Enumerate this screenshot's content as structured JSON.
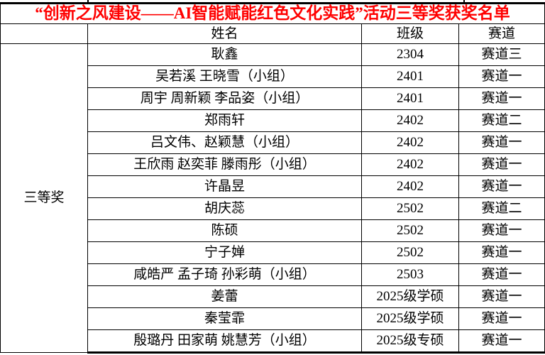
{
  "title": "“创新之风建设——AI智能赋能红色文化实践”活动三等奖获奖名单",
  "colors": {
    "title_text": "#ff0000",
    "body_text": "#000000",
    "border": "#000000",
    "background": "#ffffff"
  },
  "table": {
    "prize_label": "三等奖",
    "headers": {
      "prize": "",
      "name": "姓名",
      "class": "班级",
      "track": "赛道"
    },
    "rows": [
      {
        "name": "耿鑫",
        "class": "2304",
        "track": "赛道三"
      },
      {
        "name": "吴若溪 王晓雪（小组）",
        "class": "2401",
        "track": "赛道一"
      },
      {
        "name": "周宇 周新颖 李品姿（小组）",
        "class": "2401",
        "track": "赛道一"
      },
      {
        "name": "郑雨轩",
        "class": "2402",
        "track": "赛道二"
      },
      {
        "name": "吕文伟、赵颖慧（小组）",
        "class": "2402",
        "track": "赛道一"
      },
      {
        "name": "王欣雨 赵奕菲 滕雨彤（小组）",
        "class": "2402",
        "track": "赛道一"
      },
      {
        "name": "许晶昱",
        "class": "2402",
        "track": "赛道一"
      },
      {
        "name": "胡庆蕊",
        "class": "2502",
        "track": "赛道二"
      },
      {
        "name": "陈硕",
        "class": "2502",
        "track": "赛道一"
      },
      {
        "name": "宁子婵",
        "class": "2502",
        "track": "赛道一"
      },
      {
        "name": "咸皓严 孟子琦 孙彩萌（小组）",
        "class": "2503",
        "track": "赛道一"
      },
      {
        "name": "姜蕾",
        "class": "2025级学硕",
        "track": "赛道一"
      },
      {
        "name": "秦莹霏",
        "class": "2025级学硕",
        "track": "赛道一"
      },
      {
        "name": "殷璐丹 田家萌 姚慧芳（小组）",
        "class": "2025级专硕",
        "track": "赛道一"
      }
    ]
  }
}
